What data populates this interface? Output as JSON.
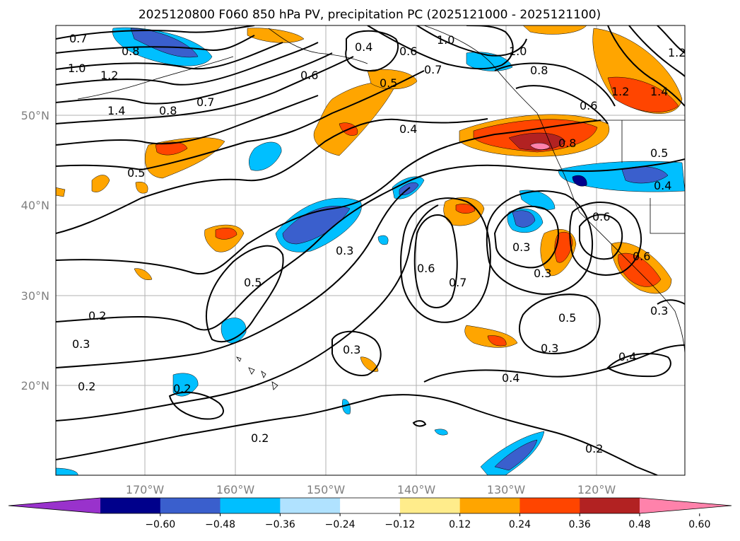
{
  "title": "2025120800 F060 850 hPa PV, precipitation PC (2025121000 - 2025121100)",
  "lon_labels": [
    "170°W",
    "160°W",
    "150°W",
    "140°W",
    "130°W",
    "120°W"
  ],
  "lat_labels": [
    "50°N",
    "40°N",
    "30°N",
    "20°N"
  ],
  "colorbar": {
    "colors": [
      "#9932cc",
      "#00008b",
      "#3a5fcd",
      "#00bfff",
      "#b0e2ff",
      "#ffffff",
      "#ffec8b",
      "#ffa500",
      "#ff4500",
      "#b22222",
      "#ff82ab"
    ],
    "ticks": [
      "−0.60",
      "−0.48",
      "−0.36",
      "−0.24",
      "−0.12",
      "0.12",
      "0.24",
      "0.36",
      "0.48",
      "0.60"
    ]
  },
  "contour_labels": [
    {
      "text": "0.7"
    },
    {
      "text": "0.8"
    },
    {
      "text": "1.0"
    },
    {
      "text": "1.2"
    },
    {
      "text": "1.4"
    },
    {
      "text": "0.8"
    },
    {
      "text": "0.7"
    },
    {
      "text": "0.6"
    },
    {
      "text": "0.4"
    },
    {
      "text": "0.5"
    },
    {
      "text": "0.6"
    },
    {
      "text": "0.7"
    },
    {
      "text": "1.0"
    },
    {
      "text": "0.8"
    },
    {
      "text": "0.6"
    },
    {
      "text": "1.2"
    },
    {
      "text": "1.4"
    },
    {
      "text": "1.2"
    },
    {
      "text": "0.4"
    },
    {
      "text": "0.5"
    },
    {
      "text": "0.5"
    },
    {
      "text": "0.4"
    },
    {
      "text": "0.6"
    },
    {
      "text": "0.3"
    },
    {
      "text": "0.5"
    },
    {
      "text": "0.6"
    },
    {
      "text": "0.7"
    },
    {
      "text": "0.3"
    },
    {
      "text": "0.3"
    },
    {
      "text": "0.6"
    },
    {
      "text": "0.5"
    },
    {
      "text": "0.3"
    },
    {
      "text": "0.2"
    },
    {
      "text": "0.3"
    },
    {
      "text": "0.3"
    },
    {
      "text": "0.2"
    },
    {
      "text": "0.2"
    },
    {
      "text": "0.4"
    },
    {
      "text": "0.4"
    },
    {
      "text": "0.3"
    },
    {
      "text": "0.2"
    },
    {
      "text": "0.2"
    },
    {
      "text": "1.0"
    },
    {
      "text": "0.8"
    }
  ]
}
